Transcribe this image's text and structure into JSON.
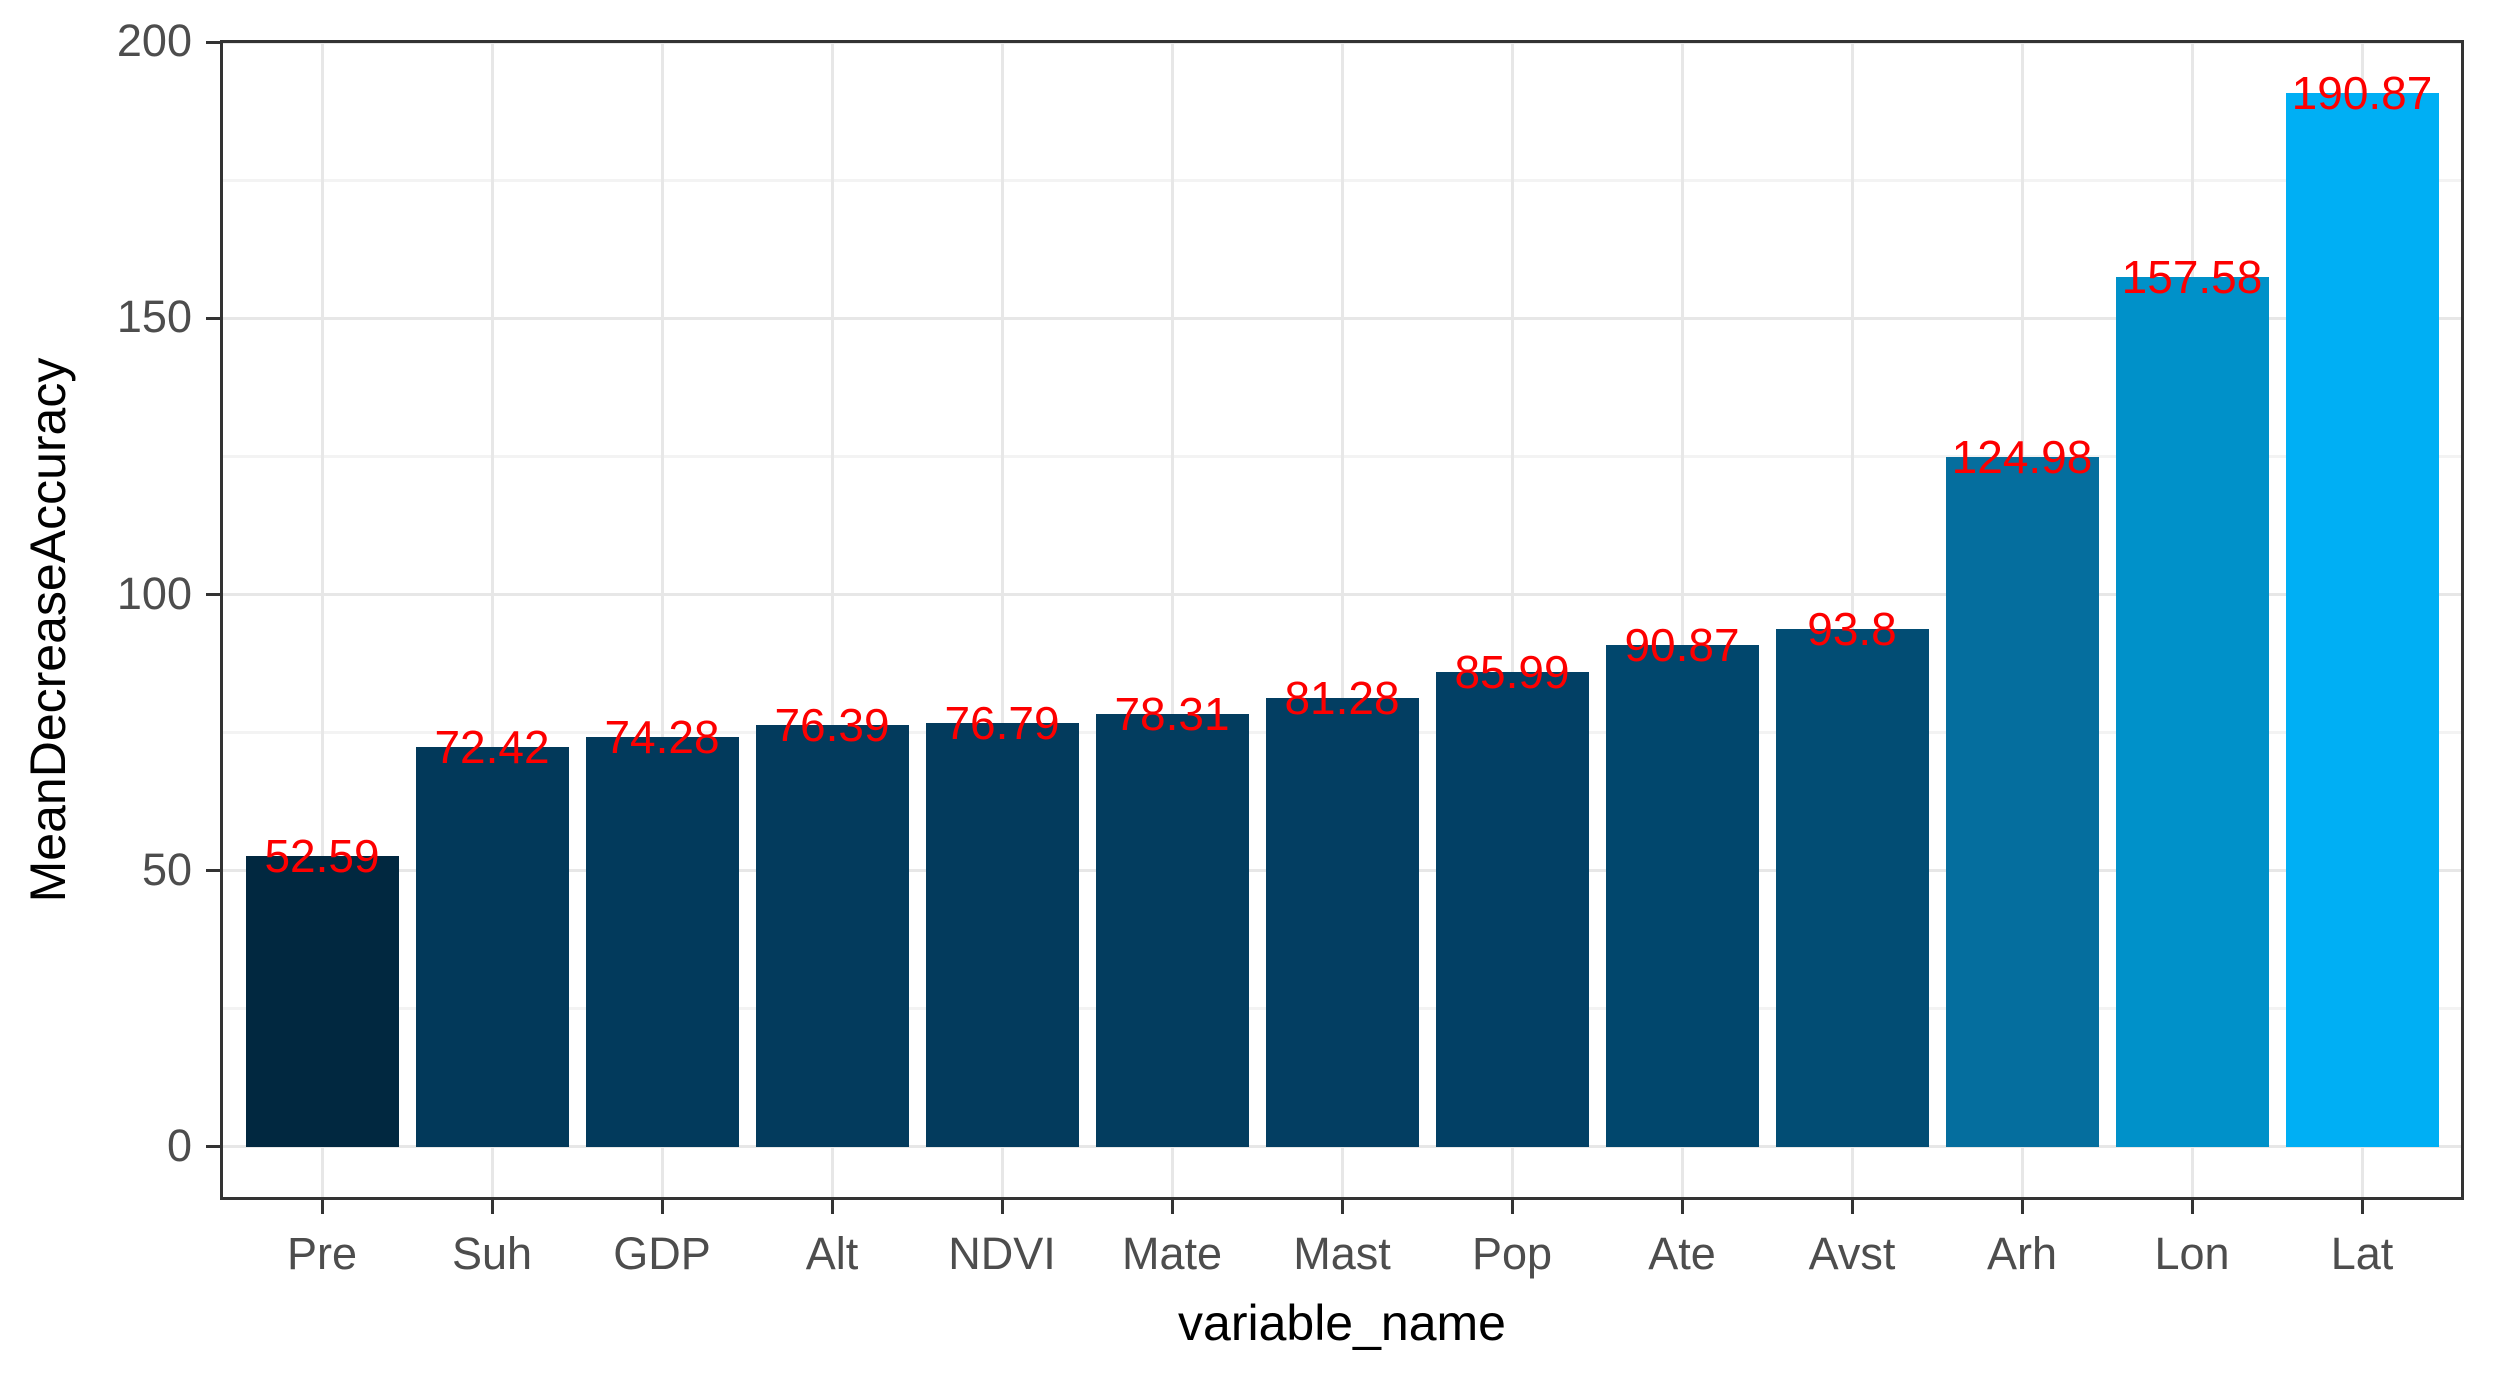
{
  "chart_data": {
    "type": "bar",
    "title": "",
    "xlabel": "variable_name",
    "ylabel": "MeanDecreaseAccuracy",
    "categories": [
      "Pre",
      "Suh",
      "GDP",
      "Alt",
      "NDVI",
      "Mate",
      "Mast",
      "Pop",
      "Ate",
      "Avst",
      "Arh",
      "Lon",
      "Lat"
    ],
    "values": [
      52.59,
      72.42,
      74.28,
      76.39,
      76.79,
      78.31,
      81.28,
      85.99,
      90.87,
      93.8,
      124.98,
      157.58,
      190.87
    ],
    "bar_colors": [
      "#012840",
      "#02395a",
      "#023a5c",
      "#033b5d",
      "#033b5d",
      "#033d5f",
      "#033e62",
      "#024065",
      "#01476d",
      "#024d74",
      "#056e9e",
      "#0091c9",
      "#00aff4"
    ],
    "value_label_color": "#fd0000",
    "y_ticks": [
      0,
      50,
      100,
      150,
      200
    ],
    "y_minor_ticks": [
      25,
      75,
      125,
      175
    ],
    "ylim": [
      -9.6,
      200.4
    ],
    "grid": true,
    "legend": "none",
    "axis_text_color": "#4d4d4d",
    "axis_title_color": "#000000",
    "panel_border_color": "#333333"
  }
}
